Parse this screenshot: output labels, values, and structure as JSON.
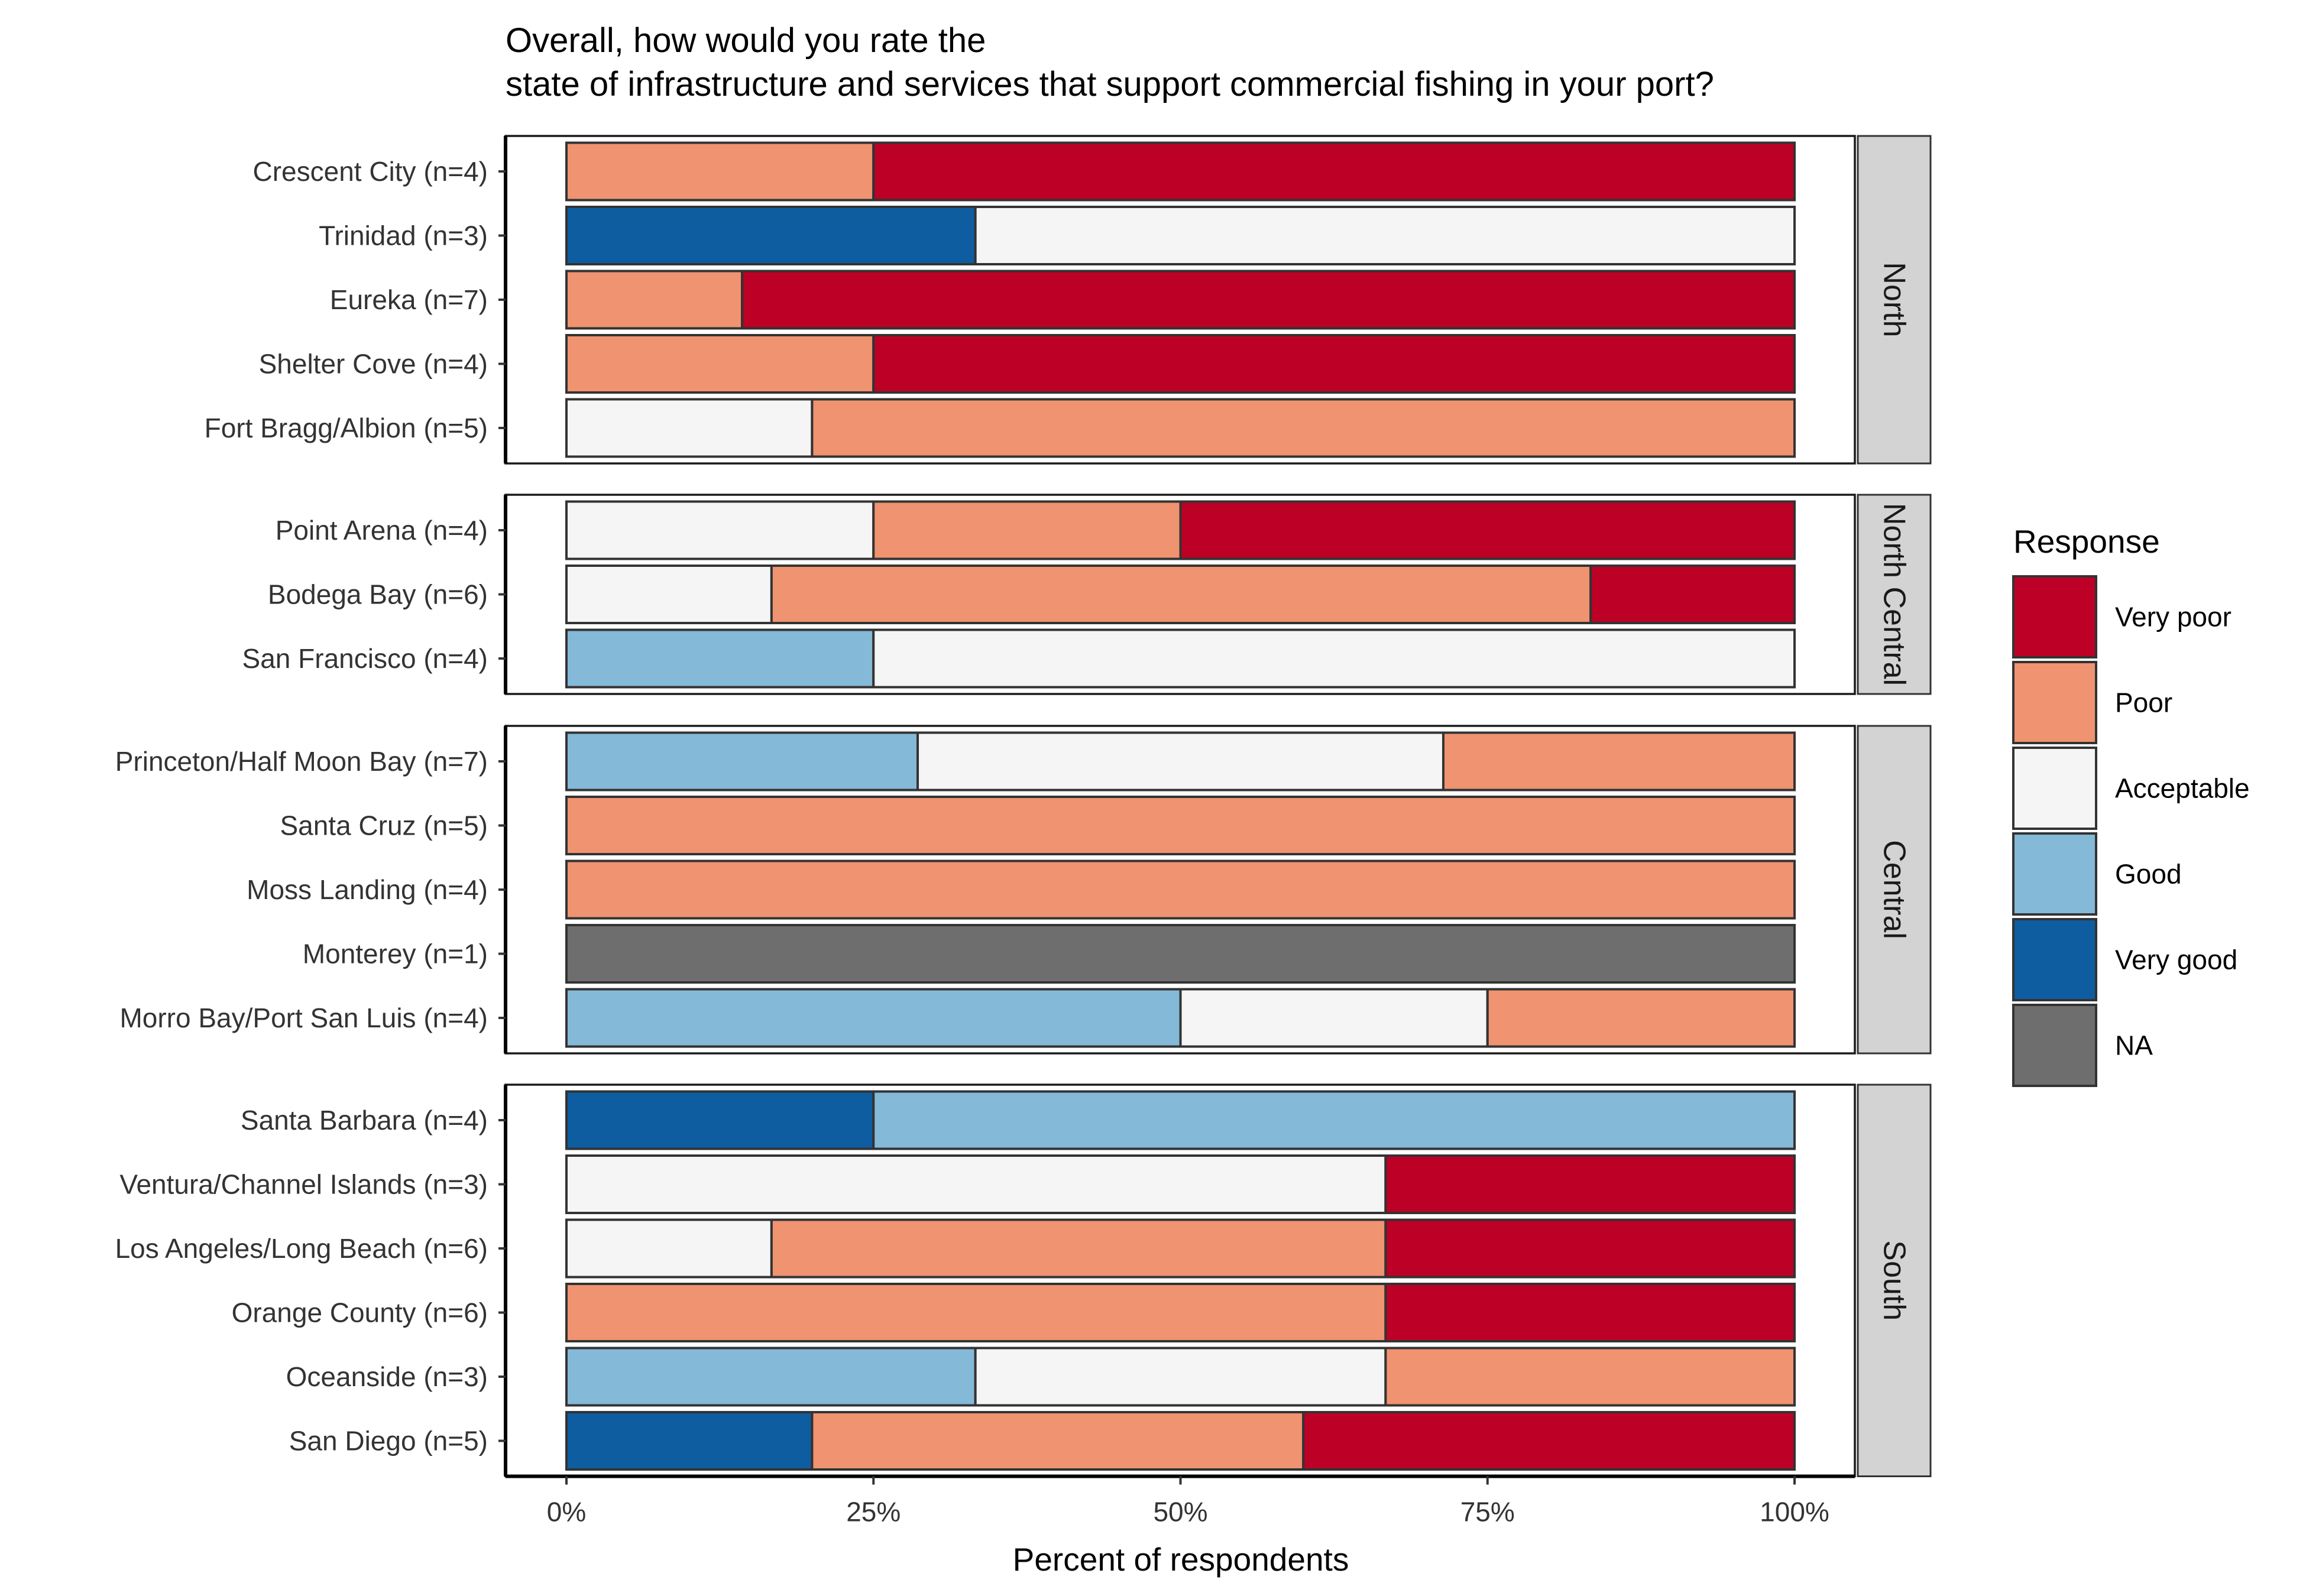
{
  "chart_data": {
    "type": "bar",
    "orientation": "horizontal",
    "stacked": true,
    "title_lines": [
      "Overall, how would you rate the",
      "state of infrastructure and services that support commercial fishing in your port?"
    ],
    "xlabel": "Percent of respondents",
    "ylabel": "",
    "xlim": [
      0,
      100
    ],
    "x_ticks": [
      0,
      25,
      50,
      75,
      100
    ],
    "x_tick_labels": [
      "0%",
      "25%",
      "50%",
      "75%",
      "100%"
    ],
    "grid": false,
    "legend_placement": "right",
    "legend_title": "Response",
    "responses": [
      {
        "name": "Very poor",
        "color": "#BD0026"
      },
      {
        "name": "Poor",
        "color": "#EF9370"
      },
      {
        "name": "Acceptable",
        "color": "#F5F5F5"
      },
      {
        "name": "Good",
        "color": "#84B9D8"
      },
      {
        "name": "Very good",
        "color": "#0E5DA1"
      },
      {
        "name": "NA",
        "color": "#6E6E6E"
      }
    ],
    "stack_order": [
      "Very good",
      "Good",
      "Acceptable",
      "Poor",
      "Very poor",
      "NA"
    ],
    "panels": [
      {
        "region": "North",
        "ports": [
          {
            "label": "Crescent City (n=4)",
            "values": {
              "Very good": 0,
              "Good": 0,
              "Acceptable": 0,
              "Poor": 25,
              "Very poor": 75,
              "NA": 0
            }
          },
          {
            "label": "Trinidad (n=3)",
            "values": {
              "Very good": 33.3,
              "Good": 0,
              "Acceptable": 66.7,
              "Poor": 0,
              "Very poor": 0,
              "NA": 0
            }
          },
          {
            "label": "Eureka (n=7)",
            "values": {
              "Very good": 0,
              "Good": 0,
              "Acceptable": 0,
              "Poor": 14.3,
              "Very poor": 85.7,
              "NA": 0
            }
          },
          {
            "label": "Shelter Cove (n=4)",
            "values": {
              "Very good": 0,
              "Good": 0,
              "Acceptable": 0,
              "Poor": 25,
              "Very poor": 75,
              "NA": 0
            }
          },
          {
            "label": "Fort Bragg/Albion (n=5)",
            "values": {
              "Very good": 0,
              "Good": 0,
              "Acceptable": 20,
              "Poor": 80,
              "Very poor": 0,
              "NA": 0
            }
          }
        ]
      },
      {
        "region": "North Central",
        "ports": [
          {
            "label": "Point Arena (n=4)",
            "values": {
              "Very good": 0,
              "Good": 0,
              "Acceptable": 25,
              "Poor": 25,
              "Very poor": 50,
              "NA": 0
            }
          },
          {
            "label": "Bodega Bay (n=6)",
            "values": {
              "Very good": 0,
              "Good": 0,
              "Acceptable": 16.7,
              "Poor": 66.7,
              "Very poor": 16.6,
              "NA": 0
            }
          },
          {
            "label": "San Francisco (n=4)",
            "values": {
              "Very good": 0,
              "Good": 25,
              "Acceptable": 75,
              "Poor": 0,
              "Very poor": 0,
              "NA": 0
            }
          }
        ]
      },
      {
        "region": "Central",
        "ports": [
          {
            "label": "Princeton/Half Moon Bay (n=7)",
            "values": {
              "Very good": 0,
              "Good": 28.6,
              "Acceptable": 42.8,
              "Poor": 28.6,
              "Very poor": 0,
              "NA": 0
            }
          },
          {
            "label": "Santa Cruz (n=5)",
            "values": {
              "Very good": 0,
              "Good": 0,
              "Acceptable": 0,
              "Poor": 100,
              "Very poor": 0,
              "NA": 0
            }
          },
          {
            "label": "Moss Landing (n=4)",
            "values": {
              "Very good": 0,
              "Good": 0,
              "Acceptable": 0,
              "Poor": 100,
              "Very poor": 0,
              "NA": 0
            }
          },
          {
            "label": "Monterey (n=1)",
            "values": {
              "Very good": 0,
              "Good": 0,
              "Acceptable": 0,
              "Poor": 0,
              "Very poor": 0,
              "NA": 100
            }
          },
          {
            "label": "Morro Bay/Port San Luis (n=4)",
            "values": {
              "Very good": 0,
              "Good": 50,
              "Acceptable": 25,
              "Poor": 25,
              "Very poor": 0,
              "NA": 0
            }
          }
        ]
      },
      {
        "region": "South",
        "ports": [
          {
            "label": "Santa Barbara (n=4)",
            "values": {
              "Very good": 25,
              "Good": 75,
              "Acceptable": 0,
              "Poor": 0,
              "Very poor": 0,
              "NA": 0
            }
          },
          {
            "label": "Ventura/Channel Islands (n=3)",
            "values": {
              "Very good": 0,
              "Good": 0,
              "Acceptable": 66.7,
              "Poor": 0,
              "Very poor": 33.3,
              "NA": 0
            }
          },
          {
            "label": "Los Angeles/Long Beach (n=6)",
            "values": {
              "Very good": 0,
              "Good": 0,
              "Acceptable": 16.7,
              "Poor": 50,
              "Very poor": 33.3,
              "NA": 0
            }
          },
          {
            "label": "Orange County (n=6)",
            "values": {
              "Very good": 0,
              "Good": 0,
              "Acceptable": 0,
              "Poor": 66.7,
              "Very poor": 33.3,
              "NA": 0
            }
          },
          {
            "label": "Oceanside (n=3)",
            "values": {
              "Very good": 0,
              "Good": 33.3,
              "Acceptable": 33.4,
              "Poor": 33.3,
              "Very poor": 0,
              "NA": 0
            }
          },
          {
            "label": "San Diego (n=5)",
            "values": {
              "Very good": 20,
              "Good": 0,
              "Acceptable": 0,
              "Poor": 40,
              "Very poor": 40,
              "NA": 0
            }
          }
        ]
      }
    ]
  }
}
